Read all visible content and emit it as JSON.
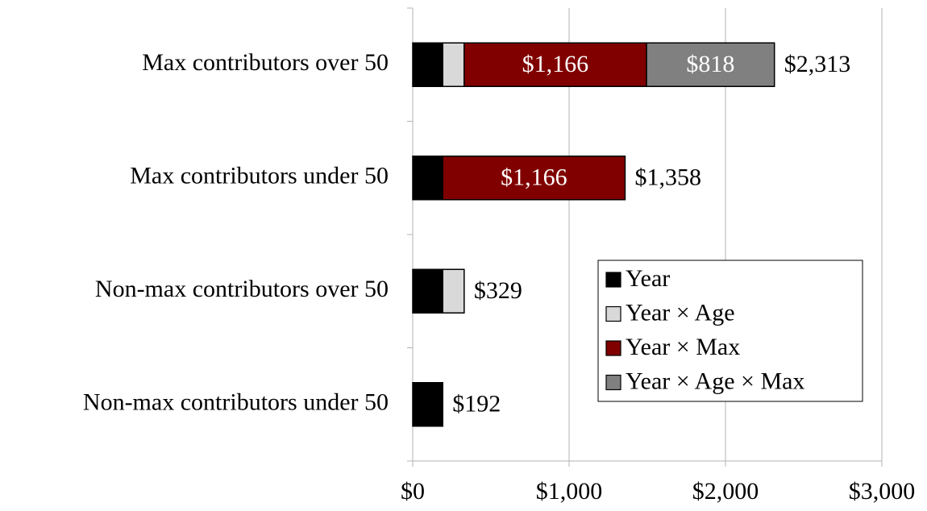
{
  "chart_data": {
    "type": "stacked-barh",
    "categories": [
      "Max contributors over 50",
      "Max contributors under 50",
      "Non-max contributors over 50",
      "Non-max contributors under 50"
    ],
    "series": [
      {
        "name": "Year",
        "color": "#000000",
        "values": [
          192,
          192,
          192,
          192
        ]
      },
      {
        "name": "Year × Age",
        "color": "#d9d9d9",
        "values": [
          137,
          null,
          137,
          null
        ]
      },
      {
        "name": "Year × Max",
        "color": "#800000",
        "values": [
          1166,
          1166,
          null,
          null
        ],
        "value_labels": [
          "$1,166",
          "$1,166",
          null,
          null
        ]
      },
      {
        "name": "Year × Age × Max",
        "color": "#808080",
        "values": [
          818,
          null,
          null,
          null
        ],
        "value_labels": [
          "$818",
          null,
          null,
          null
        ]
      }
    ],
    "totals": {
      "values": [
        2313,
        1358,
        329,
        192
      ],
      "value_labels": [
        "$2,313",
        "$1,358",
        "$329",
        "$192"
      ]
    },
    "xlim": [
      0,
      3000
    ],
    "xticks": [
      {
        "value": 0,
        "label": "$0"
      },
      {
        "value": 1000,
        "label": "$1,000"
      },
      {
        "value": 2000,
        "label": "$2,000"
      },
      {
        "value": 3000,
        "label": "$3,000"
      }
    ],
    "grid": true,
    "legend": "lower right"
  }
}
